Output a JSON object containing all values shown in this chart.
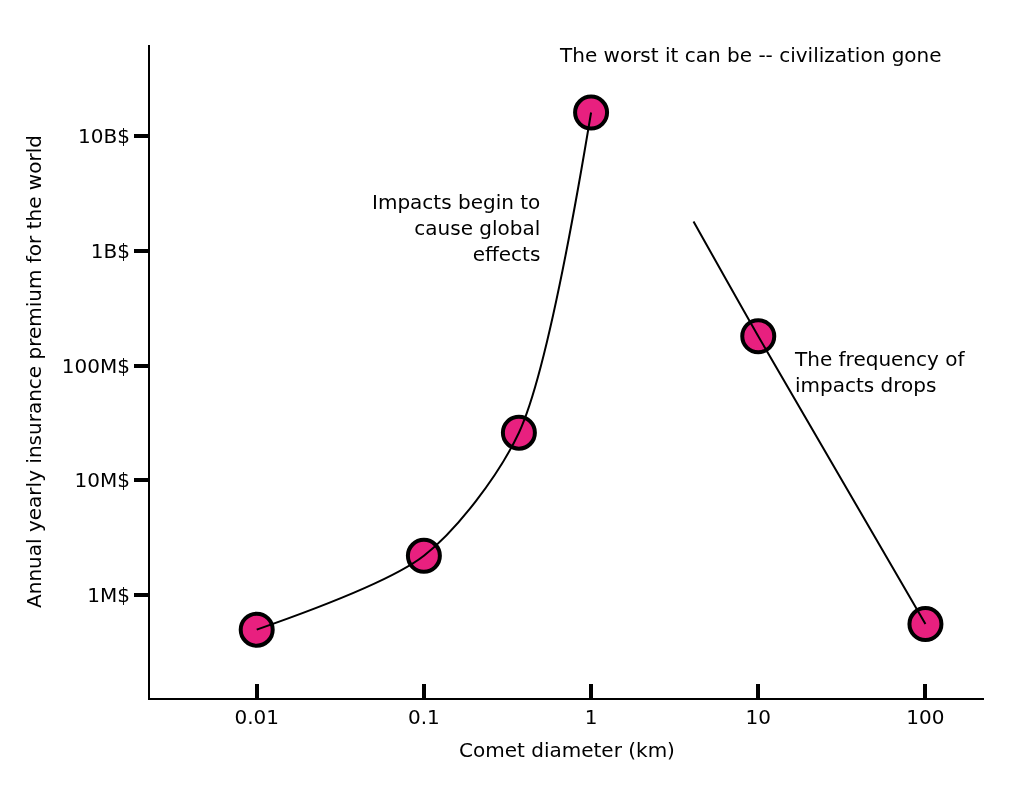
{
  "chart_data": {
    "type": "scatter",
    "xlabel": "Comet diameter (km)",
    "ylabel": "Annual yearly insurance premium for the world",
    "log": "xy",
    "xlim": [
      0.0023,
      224
    ],
    "ylim": [
      127000,
      62000000000
    ],
    "xticks": [
      0.01,
      0.1,
      1,
      10,
      100
    ],
    "yticks": [
      {
        "value": 1000000,
        "label": "1M$"
      },
      {
        "value": 10000000,
        "label": "10M$"
      },
      {
        "value": 100000000,
        "label": "100M$"
      },
      {
        "value": 1000000000,
        "label": "1B$"
      },
      {
        "value": 10000000000,
        "label": "10B$"
      }
    ],
    "legend": false,
    "series": [
      {
        "color": "#e8207f",
        "marker": "circle",
        "x": [
          0.01,
          0.1,
          0.37,
          1,
          10,
          100
        ],
        "values": [
          500000,
          2200000,
          26000000,
          16000000000,
          180000000,
          560000
        ]
      },
      {
        "type": "line",
        "color": "#000000",
        "marker": "none",
        "line_style": "solid",
        "x": [
          0.01,
          0.1,
          0.37,
          1
        ],
        "values": [
          500000,
          2200000,
          26000000,
          16000000000
        ]
      },
      {
        "type": "line",
        "color": "#000000",
        "marker": "none",
        "line_style": "solid",
        "x": [
          4.1,
          10,
          100
        ],
        "values": [
          1800000000,
          180000000,
          560000
        ]
      }
    ],
    "annotations": [
      "The worst it can be -- civilization gone",
      "Impacts begin to\ncause global\neffects",
      "The frequency of\nimpacts drops"
    ]
  }
}
